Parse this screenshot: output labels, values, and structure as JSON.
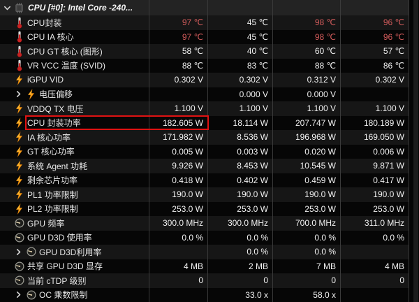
{
  "window": {
    "group_title": "CPU [#0]: Intel Core -240..."
  },
  "colors": {
    "value_red": "#d15b5b",
    "highlight_border": "#e01212",
    "row_light": "#161616",
    "row_dark": "#060606",
    "header_bg": "#232323",
    "separator": "#3a3a3a",
    "lightning_yellow": "#ffc93c",
    "lightning_orange": "#f07d00",
    "thermometer_red": "#cc2222"
  },
  "rows": [
    {
      "label": "CPU封装",
      "icon": "thermometer-icon",
      "cells": [
        {
          "t": "97 ℃",
          "red": true
        },
        {
          "t": "45 ℃"
        },
        {
          "t": "98 ℃",
          "red": true
        },
        {
          "t": "96 ℃",
          "red": true
        }
      ]
    },
    {
      "label": "CPU IA 核心",
      "icon": "thermometer-icon",
      "cells": [
        {
          "t": "97 ℃",
          "red": true
        },
        {
          "t": "45 ℃"
        },
        {
          "t": "98 ℃",
          "red": true
        },
        {
          "t": "96 ℃",
          "red": true
        }
      ]
    },
    {
      "label": "CPU GT 核心 (图形)",
      "icon": "thermometer-icon",
      "cells": [
        {
          "t": "58 ℃"
        },
        {
          "t": "40 ℃"
        },
        {
          "t": "60 ℃"
        },
        {
          "t": "57 ℃"
        }
      ]
    },
    {
      "label": "VR VCC 温度 (SVID)",
      "icon": "thermometer-icon",
      "cells": [
        {
          "t": "88 ℃"
        },
        {
          "t": "83 ℃"
        },
        {
          "t": "88 ℃"
        },
        {
          "t": "86 ℃"
        }
      ]
    },
    {
      "label": "iGPU VID",
      "icon": "lightning-icon",
      "cells": [
        {
          "t": "0.302 V"
        },
        {
          "t": "0.302 V"
        },
        {
          "t": "0.312 V"
        },
        {
          "t": "0.302 V"
        }
      ]
    },
    {
      "label": "电压偏移",
      "icon": "lightning-icon",
      "group": true,
      "cells": [
        {
          "t": ""
        },
        {
          "t": "0.000 V"
        },
        {
          "t": "0.000 V"
        },
        {
          "t": ""
        }
      ]
    },
    {
      "label": "VDDQ TX 电压",
      "icon": "lightning-icon",
      "cells": [
        {
          "t": "1.100 V"
        },
        {
          "t": "1.100 V"
        },
        {
          "t": "1.100 V"
        },
        {
          "t": "1.100 V"
        }
      ]
    },
    {
      "label": "CPU 封装功率",
      "icon": "lightning-icon",
      "highlighted": true,
      "cells": [
        {
          "t": "182.605 W"
        },
        {
          "t": "18.114 W"
        },
        {
          "t": "207.747 W"
        },
        {
          "t": "180.189 W"
        }
      ]
    },
    {
      "label": "IA 核心功率",
      "icon": "lightning-icon",
      "cells": [
        {
          "t": "171.982 W"
        },
        {
          "t": "8.536 W"
        },
        {
          "t": "196.968 W"
        },
        {
          "t": "169.050 W"
        }
      ]
    },
    {
      "label": "GT 核心功率",
      "icon": "lightning-icon",
      "cells": [
        {
          "t": "0.005 W"
        },
        {
          "t": "0.003 W"
        },
        {
          "t": "0.020 W"
        },
        {
          "t": "0.006 W"
        }
      ]
    },
    {
      "label": "系统 Agent 功耗",
      "icon": "lightning-icon",
      "cells": [
        {
          "t": "9.926 W"
        },
        {
          "t": "8.453 W"
        },
        {
          "t": "10.545 W"
        },
        {
          "t": "9.871 W"
        }
      ]
    },
    {
      "label": "剩余芯片功率",
      "icon": "lightning-icon",
      "cells": [
        {
          "t": "0.418 W"
        },
        {
          "t": "0.402 W"
        },
        {
          "t": "0.459 W"
        },
        {
          "t": "0.417 W"
        }
      ]
    },
    {
      "label": "PL1 功率限制",
      "icon": "lightning-icon",
      "cells": [
        {
          "t": "190.0 W"
        },
        {
          "t": "190.0 W"
        },
        {
          "t": "190.0 W"
        },
        {
          "t": "190.0 W"
        }
      ]
    },
    {
      "label": "PL2 功率限制",
      "icon": "lightning-icon",
      "cells": [
        {
          "t": "253.0 W"
        },
        {
          "t": "253.0 W"
        },
        {
          "t": "253.0 W"
        },
        {
          "t": "253.0 W"
        }
      ]
    },
    {
      "label": "GPU 频率",
      "icon": "gauge-icon",
      "cells": [
        {
          "t": "300.0 MHz"
        },
        {
          "t": "300.0 MHz"
        },
        {
          "t": "700.0 MHz"
        },
        {
          "t": "311.0 MHz"
        }
      ]
    },
    {
      "label": "GPU D3D 使用率",
      "icon": "gauge-icon",
      "cells": [
        {
          "t": "0.0 %"
        },
        {
          "t": "0.0 %"
        },
        {
          "t": "0.0 %"
        },
        {
          "t": "0.0 %"
        }
      ]
    },
    {
      "label": "GPU D3D利用率",
      "icon": "gauge-icon",
      "group": true,
      "cells": [
        {
          "t": ""
        },
        {
          "t": "0.0 %"
        },
        {
          "t": "0.0 %"
        },
        {
          "t": ""
        }
      ]
    },
    {
      "label": "共享 GPU D3D 显存",
      "icon": "gauge-icon",
      "cells": [
        {
          "t": "4 MB"
        },
        {
          "t": "2 MB"
        },
        {
          "t": "7 MB"
        },
        {
          "t": "4 MB"
        }
      ]
    },
    {
      "label": "当前 cTDP 级别",
      "icon": "gauge-icon",
      "cells": [
        {
          "t": "0"
        },
        {
          "t": "0"
        },
        {
          "t": "0"
        },
        {
          "t": "0"
        }
      ]
    },
    {
      "label": "OC 乘数限制",
      "icon": "gauge-icon",
      "group": true,
      "cells": [
        {
          "t": ""
        },
        {
          "t": "33.0 x"
        },
        {
          "t": "58.0 x"
        },
        {
          "t": ""
        }
      ]
    }
  ]
}
